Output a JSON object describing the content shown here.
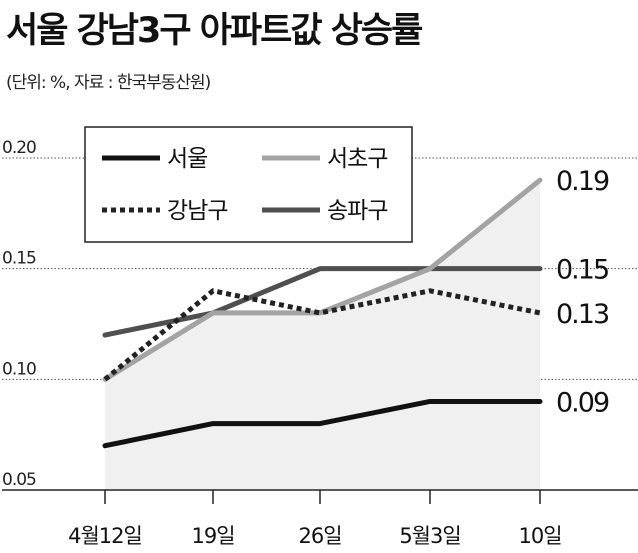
{
  "header": {
    "title": "서울 강남3구 아파트값 상승률",
    "source": "(단위: %, 자료 : 한국부동산원)"
  },
  "colors": {
    "서울": "#111111",
    "서초구": "#a3a3a3",
    "강남구": "#222222",
    "송파구": "#4f4f4f",
    "area": "#f0f0f0"
  },
  "chart_data": {
    "type": "line",
    "categories": [
      "4월12일",
      "19일",
      "26일",
      "5월3일",
      "10일"
    ],
    "ylim": [
      0.05,
      0.2
    ],
    "yticks": [
      "0.05",
      "0.10",
      "0.15",
      "0.20"
    ],
    "grid": "dotted horizontal",
    "legend": "top-left",
    "series": [
      {
        "name": "서울",
        "values": [
          0.07,
          0.08,
          0.08,
          0.09,
          0.09
        ],
        "end_label": "0.09",
        "style": "solid"
      },
      {
        "name": "서초구",
        "values": [
          0.1,
          0.13,
          0.13,
          0.15,
          0.19
        ],
        "end_label": "0.19",
        "style": "solid"
      },
      {
        "name": "강남구",
        "values": [
          0.1,
          0.14,
          0.13,
          0.14,
          0.13
        ],
        "end_label": "0.13",
        "style": "dotted"
      },
      {
        "name": "송파구",
        "values": [
          0.12,
          0.13,
          0.15,
          0.15,
          0.15
        ],
        "end_label": "0.15",
        "style": "solid"
      }
    ]
  }
}
